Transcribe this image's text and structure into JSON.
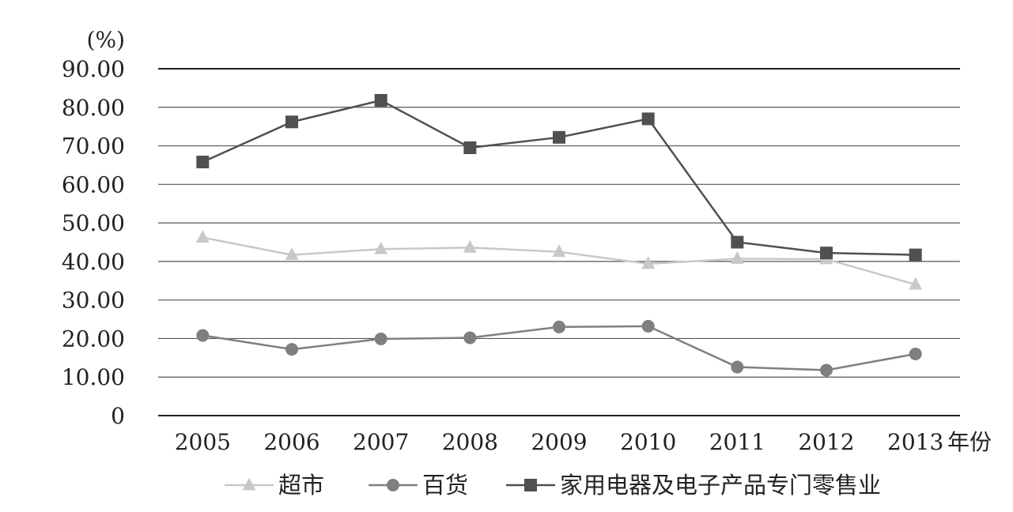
{
  "chart_data": {
    "type": "line",
    "title": "",
    "unit_label": "(%)",
    "xlabel_suffix": "年份",
    "categories": [
      "2005",
      "2006",
      "2007",
      "2008",
      "2009",
      "2010",
      "2011",
      "2012",
      "2013"
    ],
    "ylim": [
      0,
      90
    ],
    "yticks": [
      0,
      10,
      20,
      30,
      40,
      50,
      60,
      70,
      80,
      90
    ],
    "ytick_labels": [
      "0",
      "10.00",
      "20.00",
      "30.00",
      "40.00",
      "50.00",
      "60.00",
      "70.00",
      "80.00",
      "90.00"
    ],
    "grid": true,
    "legend_position": "bottom",
    "series": [
      {
        "name": "超市",
        "marker": "triangle",
        "color": "#c8c8c8",
        "values": [
          46.2,
          41.7,
          43.2,
          43.6,
          42.5,
          39.4,
          40.7,
          40.6,
          34.0
        ]
      },
      {
        "name": "百货",
        "marker": "circle",
        "color": "#7f7f7f",
        "values": [
          20.8,
          17.2,
          19.9,
          20.2,
          23.0,
          23.2,
          12.6,
          11.8,
          16.0
        ]
      },
      {
        "name": "家用电器及电子产品专门零售业",
        "marker": "square",
        "color": "#505050",
        "values": [
          65.8,
          76.2,
          81.8,
          69.5,
          72.2,
          77.0,
          45.0,
          42.2,
          41.7
        ]
      }
    ]
  }
}
